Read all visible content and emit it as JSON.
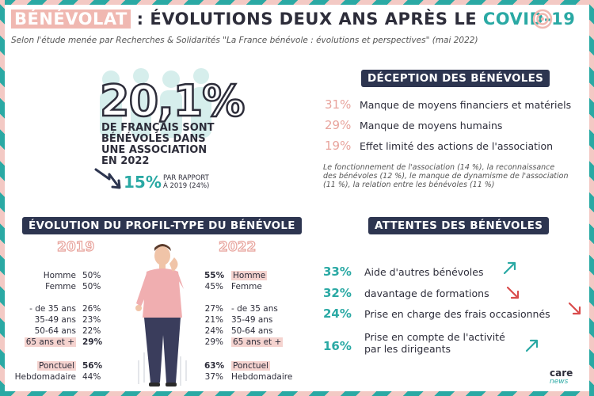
{
  "title": {
    "part1": "BÉNÉVOLAT",
    "part2": " : ÉVOLUTIONS DEUX ANS APRÈS LE ",
    "part3": "COVID-19"
  },
  "subtitle": "Selon l'étude menée par Recherches & Solidarités \"La France bénévole : évolutions et perspectives\" (mai 2022)",
  "headline": {
    "value": "20,1%",
    "desc_line1": "DE FRANÇAIS SONT",
    "desc_line2": "BÉNÉVOLES DANS",
    "desc_line3": "UNE ASSOCIATION",
    "desc_line4": "EN 2022",
    "change": "15%",
    "change_line1": "PAR RAPPORT",
    "change_line2": "À 2019 (24%)"
  },
  "deception": {
    "heading": "DÉCEPTION DES BÉNÉVOLES",
    "items": [
      {
        "pct": "31%",
        "label": "Manque de moyens financiers et matériels"
      },
      {
        "pct": "29%",
        "label": "Manque de moyens humains"
      },
      {
        "pct": "19%",
        "label": "Effet limité des actions de l'association"
      }
    ],
    "note": "Le fonctionnement de l'association (14 %), la reconnaissance des bénévoles (12 %), le manque de dynamisme de l'association (11 %), la relation entre les bénévoles (11 %)"
  },
  "profile": {
    "heading": "ÉVOLUTION DU PROFIL-TYPE DU BÉNÉVOLE",
    "year1": "2019",
    "year2": "2022",
    "rows": [
      {
        "label": "Homme",
        "v2019": "50%",
        "v2022": "55%"
      },
      {
        "label": "Femme",
        "v2019": "50%",
        "v2022": "45%"
      },
      {
        "label": "- de 35 ans",
        "v2019": "26%",
        "v2022": "27%"
      },
      {
        "label": "35-49 ans",
        "v2019": "23%",
        "v2022": "21%"
      },
      {
        "label": "50-64 ans",
        "v2019": "22%",
        "v2022": "24%"
      },
      {
        "label": "65 ans et +",
        "v2019": "29%",
        "v2022": "29%"
      },
      {
        "label": "Ponctuel",
        "v2019": "56%",
        "v2022": "63%"
      },
      {
        "label": "Hebdomadaire",
        "v2019": "44%",
        "v2022": "37%"
      }
    ]
  },
  "attentes": {
    "heading": "ATTENTES DES BÉNÉVOLES",
    "items": [
      {
        "pct": "33%",
        "label": "Aide d'autres bénévoles",
        "trend": "up"
      },
      {
        "pct": "32%",
        "label": "davantage de formations",
        "trend": "down"
      },
      {
        "pct": "24%",
        "label": "Prise en charge des frais occasionnés",
        "trend": "down"
      },
      {
        "pct": "16%",
        "label_line1": "Prise en compte de l'activité",
        "label_line2": "par les dirigeants",
        "trend": "up"
      }
    ]
  },
  "logo": {
    "care": "care",
    "news": "news"
  },
  "colors": {
    "teal": "#2aa9a4",
    "pink": "#e8a49d",
    "navy": "#2d3550"
  }
}
